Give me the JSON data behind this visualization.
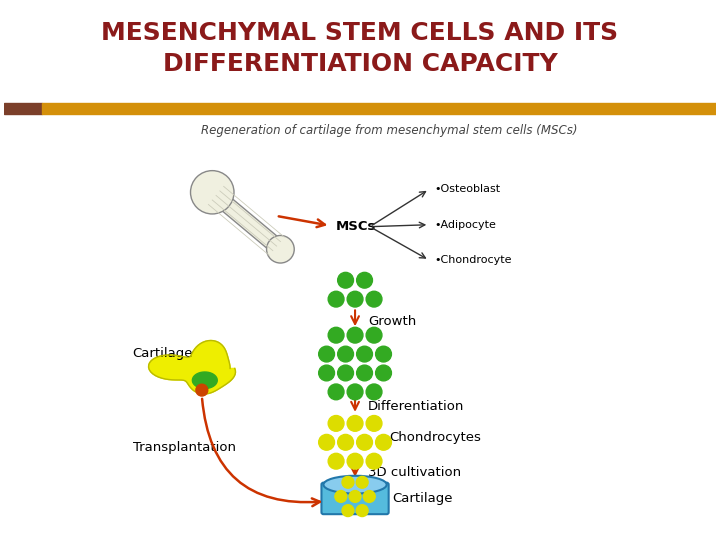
{
  "title_line1": "MESENCHYMAL STEM CELLS AND ITS",
  "title_line2": "DIFFERENTIATION CAPACITY",
  "title_color": "#8B1A1A",
  "title_fontsize": 18,
  "title_fontweight": "bold",
  "bg_color": "#FFFFFF",
  "bar_color_left": "#7B3F2A",
  "bar_color_main": "#D4900A",
  "subtitle": "Regeneration of cartilage from mesenchymal stem cells (MSCs)",
  "subtitle_fontsize": 8.5,
  "subtitle_color": "#444444",
  "arrow_color": "#CC3300",
  "label_growth": "Growth",
  "label_diff": "Differentiation",
  "label_chondrocytes": "Chondrocytes",
  "label_3d": "3D cultivation",
  "label_cartilage_dish": "Cartilage",
  "label_mscs": "MSCs",
  "label_osteoblast": "Osteoblast",
  "label_adipocyte": "Adipocyte",
  "label_chondrocyte": "Chondrocyte",
  "label_cartilage_left": "Cartilage",
  "label_transplantation": "Transplantation",
  "diagram_label_fontsize": 8.5,
  "green_dot_color": "#33AA22",
  "yellow_dot_color": "#DDDD00",
  "cyan_color": "#55BBDD",
  "yellow_shape_color": "#EEEE00",
  "small_green_dots": 5,
  "large_green_dots": 16,
  "yellow_dots": 12,
  "dish_yellow_dots": 9
}
